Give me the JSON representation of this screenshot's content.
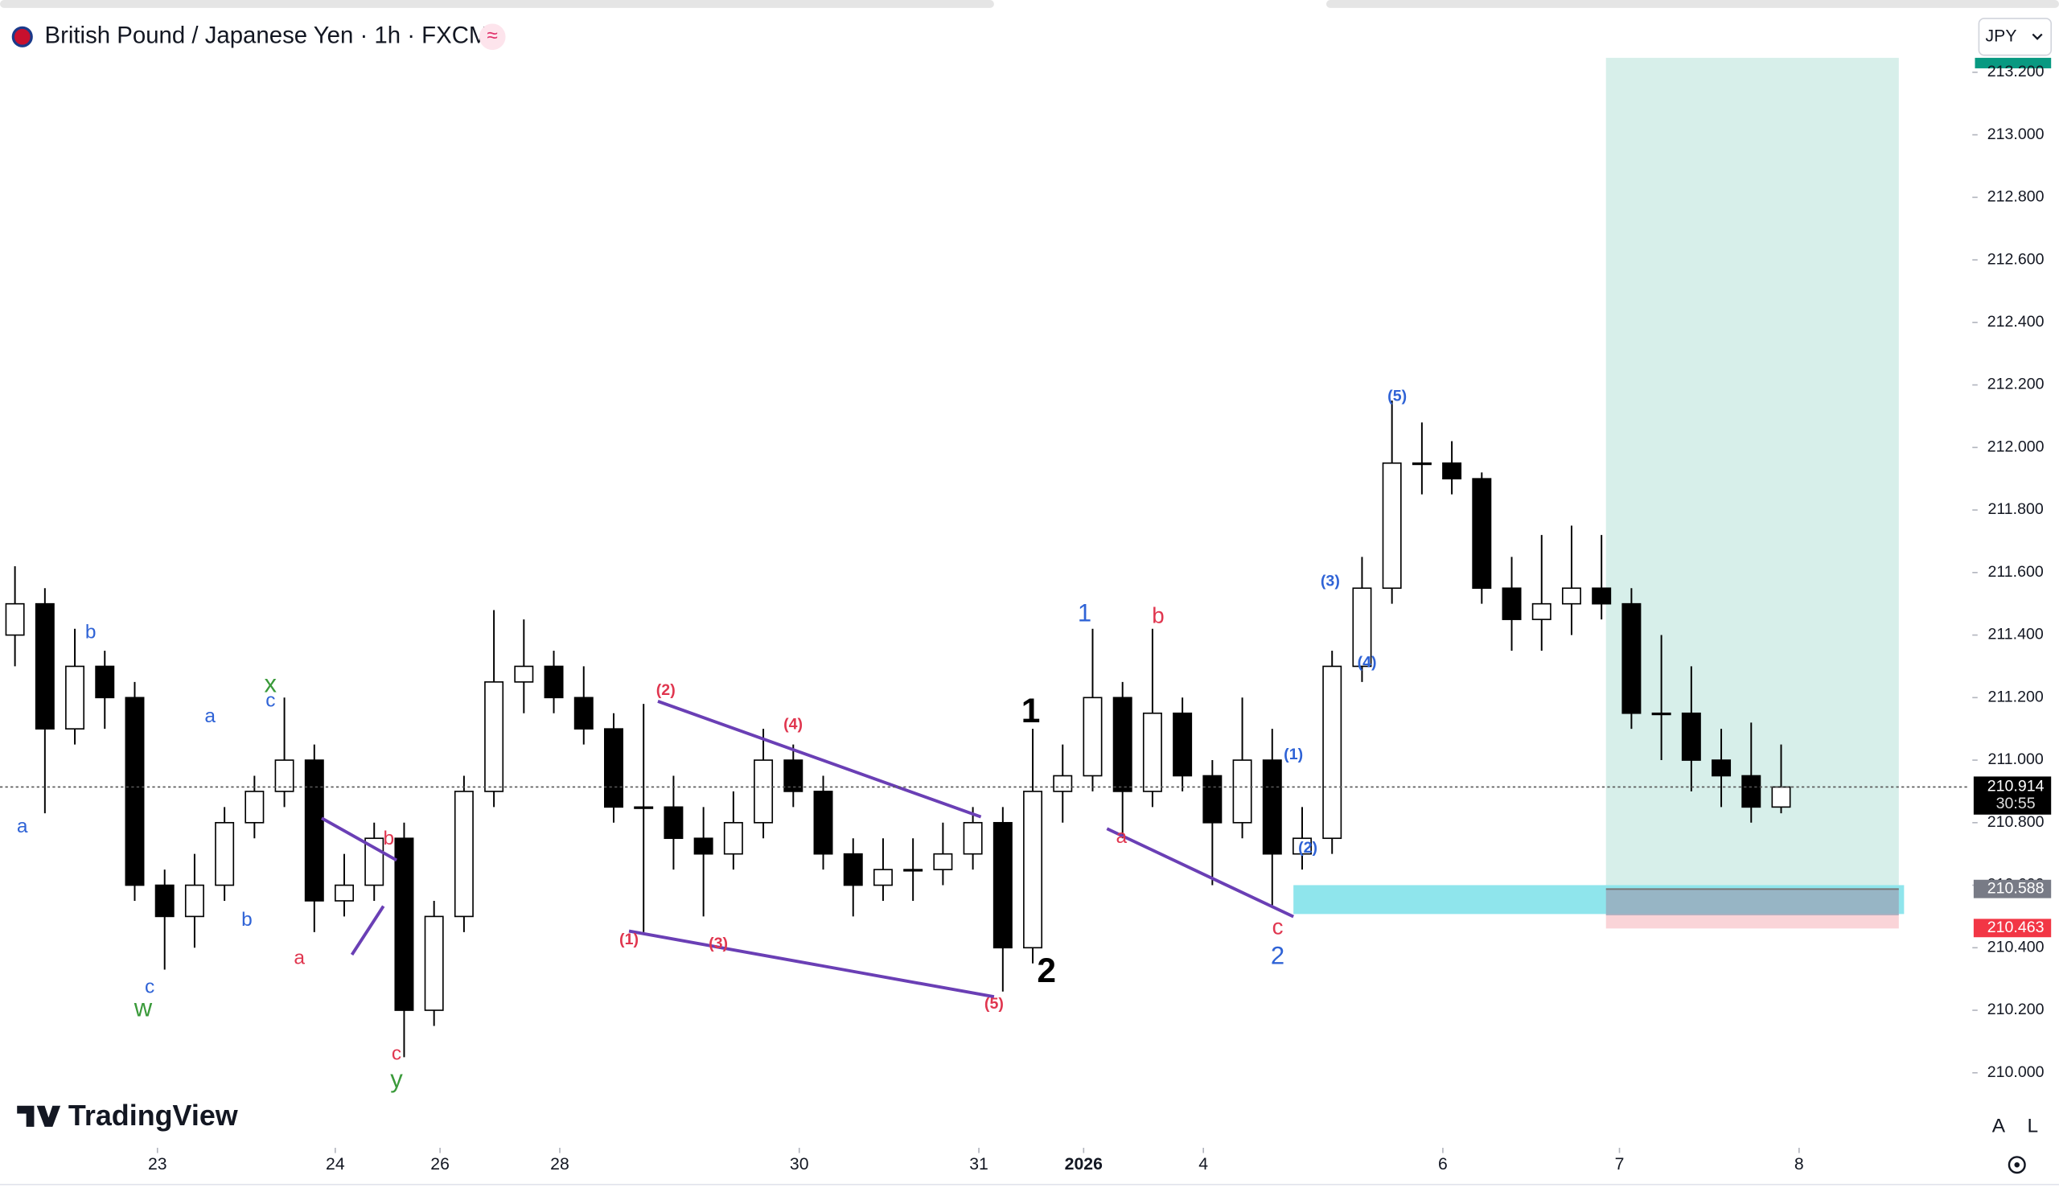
{
  "header": {
    "title": "British Pound / Japanese Yen · 1h · FXCM",
    "badge": "≈",
    "currency": "JPY"
  },
  "chart_data": {
    "type": "candlestick",
    "open": [
      211.4,
      211.5,
      211.1,
      211.3,
      211.2,
      210.6,
      210.5,
      210.6,
      210.8,
      210.9,
      211.0,
      210.55,
      210.6,
      210.75,
      210.2,
      210.5,
      210.9,
      211.25,
      211.3,
      211.2,
      211.1,
      210.85,
      210.85,
      210.75,
      210.7,
      210.8,
      211.0,
      210.9,
      210.7,
      210.6,
      210.65,
      210.65,
      210.7,
      210.8,
      210.4,
      210.9,
      210.95,
      211.2,
      210.9,
      211.15,
      210.95,
      210.8,
      211.0,
      210.7,
      210.75,
      211.3,
      211.55,
      211.95,
      211.95,
      211.9,
      211.55,
      211.45,
      211.5,
      211.55,
      211.5,
      211.15,
      211.15,
      211.0,
      210.95,
      210.85
    ],
    "high": [
      211.62,
      211.55,
      211.42,
      211.35,
      211.25,
      210.65,
      210.7,
      210.85,
      210.95,
      211.2,
      211.05,
      210.7,
      210.8,
      210.8,
      210.55,
      210.95,
      211.48,
      211.45,
      211.35,
      211.3,
      211.15,
      211.18,
      210.95,
      210.85,
      210.9,
      211.1,
      211.05,
      210.95,
      210.75,
      210.75,
      210.75,
      210.8,
      210.85,
      210.85,
      211.1,
      211.05,
      211.42,
      211.25,
      211.42,
      211.2,
      211.0,
      211.2,
      211.1,
      210.85,
      211.35,
      211.65,
      212.15,
      212.08,
      212.02,
      211.92,
      211.65,
      211.72,
      211.75,
      211.72,
      211.55,
      211.4,
      211.3,
      211.1,
      211.12,
      211.05
    ],
    "low": [
      211.3,
      210.83,
      211.05,
      211.1,
      210.55,
      210.33,
      210.4,
      210.55,
      210.75,
      210.85,
      210.45,
      210.5,
      210.55,
      210.05,
      210.15,
      210.45,
      210.85,
      211.15,
      211.15,
      211.05,
      210.8,
      210.45,
      210.65,
      210.5,
      210.65,
      210.75,
      210.85,
      210.65,
      210.5,
      210.55,
      210.55,
      210.6,
      210.65,
      210.26,
      210.35,
      210.8,
      210.9,
      210.75,
      210.85,
      210.9,
      210.6,
      210.75,
      210.53,
      210.65,
      210.7,
      211.25,
      211.5,
      211.85,
      211.85,
      211.5,
      211.35,
      211.35,
      211.4,
      211.45,
      211.1,
      211.0,
      210.9,
      210.85,
      210.8,
      210.83
    ],
    "close": [
      211.5,
      211.1,
      211.3,
      211.2,
      210.6,
      210.5,
      210.6,
      210.8,
      210.9,
      211.0,
      210.55,
      210.6,
      210.75,
      210.2,
      210.5,
      210.9,
      211.25,
      211.3,
      211.2,
      211.1,
      210.85,
      210.85,
      210.75,
      210.7,
      210.8,
      211.0,
      210.9,
      210.7,
      210.6,
      210.65,
      210.65,
      210.7,
      210.8,
      210.4,
      210.9,
      210.95,
      211.2,
      210.9,
      211.15,
      210.95,
      210.8,
      211.0,
      210.7,
      210.75,
      211.3,
      211.55,
      211.95,
      211.95,
      211.9,
      211.55,
      211.45,
      211.5,
      211.55,
      211.5,
      211.15,
      211.15,
      211.0,
      210.95,
      210.85,
      210.914
    ],
    "up_color": "#ffffff",
    "down_color": "#000000",
    "edge_color": "#000000",
    "xlim": [
      -0.5,
      65.3
    ],
    "xticks": [
      {
        "value": 4.76,
        "label": "23"
      },
      {
        "value": 10.7,
        "label": "24"
      },
      {
        "value": 14.2,
        "label": "26"
      },
      {
        "value": 18.2,
        "label": "28"
      },
      {
        "value": 26.2,
        "label": "30"
      },
      {
        "value": 32.2,
        "label": "31"
      },
      {
        "value": 35.7,
        "label": "2026"
      },
      {
        "value": 39.7,
        "label": "4"
      },
      {
        "value": 47.7,
        "label": "6"
      },
      {
        "value": 53.6,
        "label": "7"
      },
      {
        "value": 59.6,
        "label": "8"
      }
    ],
    "ylim": [
      209.777,
      213.431
    ],
    "yticks": [
      {
        "value": 210.0,
        "label": "210.000"
      },
      {
        "value": 210.2,
        "label": "210.200"
      },
      {
        "value": 210.4,
        "label": "210.400"
      },
      {
        "value": 210.6,
        "label": "210.600"
      },
      {
        "value": 210.8,
        "label": "210.800"
      },
      {
        "value": 211.0,
        "label": "211.000"
      },
      {
        "value": 211.2,
        "label": "211.200"
      },
      {
        "value": 211.4,
        "label": "211.400"
      },
      {
        "value": 211.6,
        "label": "211.600"
      },
      {
        "value": 211.8,
        "label": "211.800"
      },
      {
        "value": 212.0,
        "label": "212.000"
      },
      {
        "value": 212.2,
        "label": "212.200"
      },
      {
        "value": 212.4,
        "label": "212.400"
      },
      {
        "value": 212.6,
        "label": "212.600"
      },
      {
        "value": 212.8,
        "label": "212.800"
      },
      {
        "value": 213.0,
        "label": "213.000"
      },
      {
        "value": 213.2,
        "label": "213.200"
      }
    ],
    "countdown": "30:55",
    "entry": 210.588,
    "stop": 210.463
  },
  "annotations": [
    "a",
    "b",
    "c",
    "w",
    "a",
    "x",
    "c",
    "b",
    "a",
    "b",
    "c",
    "y",
    "(2)",
    "(4)",
    "(1)",
    "(3)",
    "(5)",
    "1",
    "2",
    "1",
    "b",
    "a",
    "(1)",
    "(2)",
    "c",
    "2",
    "(3)",
    "(4)",
    "(5)"
  ],
  "footer": {
    "brand": "TradingView",
    "auto": "A",
    "log": "L"
  }
}
